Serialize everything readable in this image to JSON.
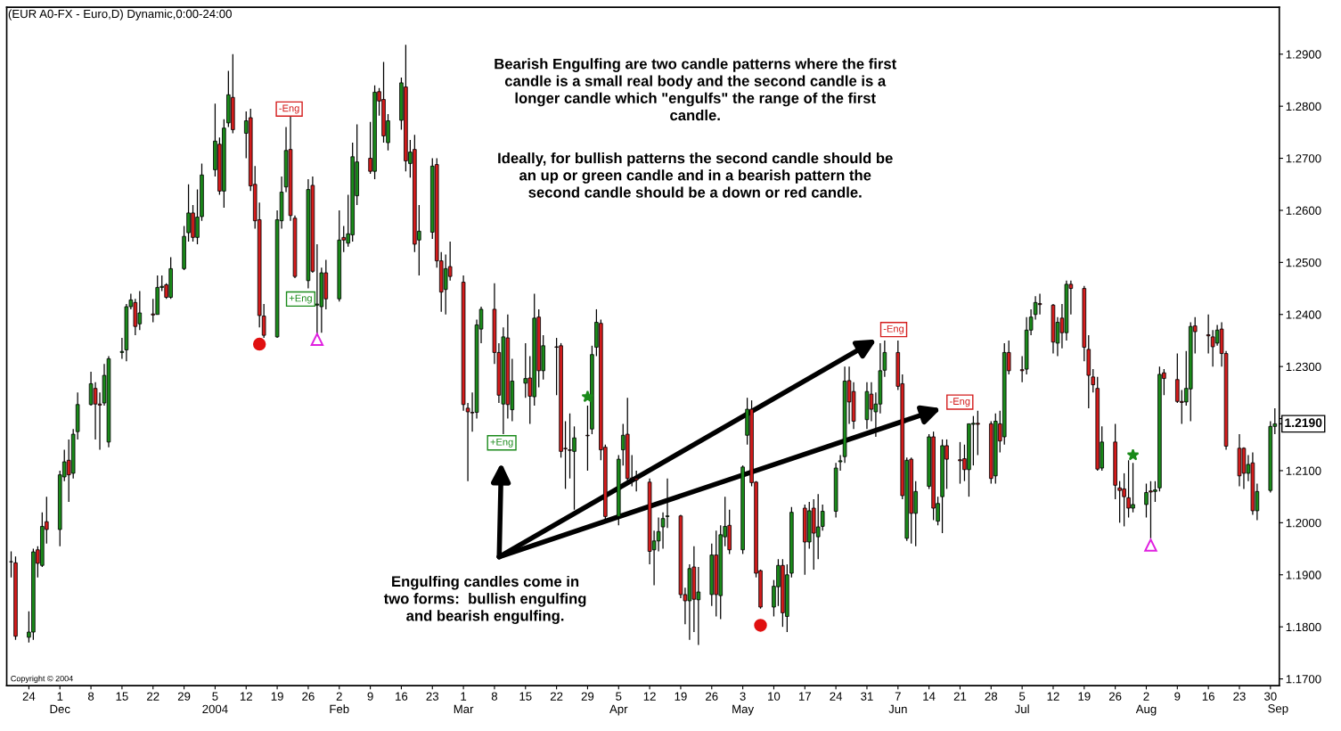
{
  "chart_data": {
    "type": "candlestick",
    "title": "(EUR A0-FX - Euro,D) Dynamic,0:00-24:00",
    "x": [
      "2003-11-20",
      "2003-11-21",
      "2003-11-24",
      "2003-11-25",
      "2003-11-26",
      "2003-11-27",
      "2003-11-28",
      "2003-12-01",
      "2003-12-02",
      "2003-12-03",
      "2003-12-04",
      "2003-12-05",
      "2003-12-08",
      "2003-12-09",
      "2003-12-10",
      "2003-12-11",
      "2003-12-12",
      "2003-12-15",
      "2003-12-16",
      "2003-12-17",
      "2003-12-18",
      "2003-12-19",
      "2003-12-22",
      "2003-12-23",
      "2003-12-24",
      "2003-12-25",
      "2003-12-26",
      "2003-12-29",
      "2003-12-30",
      "2003-12-31",
      "2004-01-01",
      "2004-01-02",
      "2004-01-05",
      "2004-01-06",
      "2004-01-07",
      "2004-01-08",
      "2004-01-09",
      "2004-01-12",
      "2004-01-13",
      "2004-01-14",
      "2004-01-15",
      "2004-01-16",
      "2004-01-19",
      "2004-01-20",
      "2004-01-21",
      "2004-01-22",
      "2004-01-23",
      "2004-01-26",
      "2004-01-27",
      "2004-01-28",
      "2004-01-29",
      "2004-01-30",
      "2004-02-02",
      "2004-02-03",
      "2004-02-04",
      "2004-02-05",
      "2004-02-06",
      "2004-02-09",
      "2004-02-10",
      "2004-02-11",
      "2004-02-12",
      "2004-02-13",
      "2004-02-16",
      "2004-02-17",
      "2004-02-18",
      "2004-02-19",
      "2004-02-20",
      "2004-02-23",
      "2004-02-24",
      "2004-02-25",
      "2004-02-26",
      "2004-02-27",
      "2004-03-01",
      "2004-03-02",
      "2004-03-03",
      "2004-03-04",
      "2004-03-05",
      "2004-03-08",
      "2004-03-09",
      "2004-03-10",
      "2004-03-11",
      "2004-03-12",
      "2004-03-15",
      "2004-03-16",
      "2004-03-17",
      "2004-03-18",
      "2004-03-19",
      "2004-03-22",
      "2004-03-23",
      "2004-03-24",
      "2004-03-25",
      "2004-03-26",
      "2004-03-29",
      "2004-03-30",
      "2004-03-31",
      "2004-04-01",
      "2004-04-02",
      "2004-04-05",
      "2004-04-06",
      "2004-04-07",
      "2004-04-08",
      "2004-04-09",
      "2004-04-12",
      "2004-04-13",
      "2004-04-14",
      "2004-04-15",
      "2004-04-16",
      "2004-04-19",
      "2004-04-20",
      "2004-04-21",
      "2004-04-22",
      "2004-04-23",
      "2004-04-26",
      "2004-04-27",
      "2004-04-28",
      "2004-04-29",
      "2004-04-30",
      "2004-05-03",
      "2004-05-04",
      "2004-05-05",
      "2004-05-06",
      "2004-05-07",
      "2004-05-10",
      "2004-05-11",
      "2004-05-12",
      "2004-05-13",
      "2004-05-14",
      "2004-05-17",
      "2004-05-18",
      "2004-05-19",
      "2004-05-20",
      "2004-05-21",
      "2004-05-24",
      "2004-05-25",
      "2004-05-26",
      "2004-05-27",
      "2004-05-28",
      "2004-05-31",
      "2004-06-01",
      "2004-06-02",
      "2004-06-03",
      "2004-06-04",
      "2004-06-07",
      "2004-06-08",
      "2004-06-09",
      "2004-06-10",
      "2004-06-11",
      "2004-06-14",
      "2004-06-15",
      "2004-06-16",
      "2004-06-17",
      "2004-06-18",
      "2004-06-21",
      "2004-06-22",
      "2004-06-23",
      "2004-06-24",
      "2004-06-25",
      "2004-06-28",
      "2004-06-29",
      "2004-06-30",
      "2004-07-01",
      "2004-07-02",
      "2004-07-05",
      "2004-07-06",
      "2004-07-07",
      "2004-07-08",
      "2004-07-09",
      "2004-07-12",
      "2004-07-13",
      "2004-07-14",
      "2004-07-15",
      "2004-07-16",
      "2004-07-19",
      "2004-07-20",
      "2004-07-21",
      "2004-07-22",
      "2004-07-23",
      "2004-07-26",
      "2004-07-27",
      "2004-07-28",
      "2004-07-29",
      "2004-07-30",
      "2004-08-02",
      "2004-08-03",
      "2004-08-04",
      "2004-08-05",
      "2004-08-06",
      "2004-08-09",
      "2004-08-10",
      "2004-08-11",
      "2004-08-12",
      "2004-08-13",
      "2004-08-16",
      "2004-08-17",
      "2004-08-18",
      "2004-08-19",
      "2004-08-20",
      "2004-08-23",
      "2004-08-24",
      "2004-08-25",
      "2004-08-26",
      "2004-08-27",
      "2004-08-30",
      "2004-08-31"
    ],
    "ohlc": [
      [
        1.1925,
        1.1945,
        1.1895,
        1.1925
      ],
      [
        1.1923,
        1.1935,
        1.1775,
        1.1782
      ],
      [
        1.178,
        1.183,
        1.177,
        1.179
      ],
      [
        1.179,
        1.195,
        1.1775,
        1.1944
      ],
      [
        1.1948,
        1.1955,
        1.1895,
        1.1922
      ],
      [
        1.1918,
        1.202,
        1.1915,
        1.1993
      ],
      [
        1.2002,
        1.205,
        1.196,
        1.1987
      ],
      [
        1.1987,
        1.21,
        1.1955,
        1.2092
      ],
      [
        1.2088,
        1.214,
        1.208,
        1.2117
      ],
      [
        1.212,
        1.216,
        1.204,
        1.2092
      ],
      [
        1.2095,
        1.218,
        1.2085,
        1.217
      ],
      [
        1.2175,
        1.225,
        1.216,
        1.2227
      ],
      [
        1.2227,
        1.229,
        1.2225,
        1.2267
      ],
      [
        1.2258,
        1.227,
        1.216,
        1.2228
      ],
      [
        1.2228,
        1.225,
        1.214,
        1.2226
      ],
      [
        1.223,
        1.2305,
        1.2225,
        1.2283
      ],
      [
        1.2155,
        1.232,
        1.2145,
        1.2315
      ],
      [
        1.2327,
        1.2355,
        1.2315,
        1.2329
      ],
      [
        1.2332,
        1.242,
        1.231,
        1.2415
      ],
      [
        1.2415,
        1.244,
        1.241,
        1.2428
      ],
      [
        1.2423,
        1.243,
        1.236,
        1.2377
      ],
      [
        1.2382,
        1.2445,
        1.237,
        1.2403
      ],
      [
        1.2401,
        1.243,
        1.2385,
        1.2399
      ],
      [
        1.24,
        1.2475,
        1.24,
        1.2452
      ],
      [
        1.2452,
        1.2475,
        1.2445,
        1.2454
      ],
      [
        1.2457,
        1.246,
        1.243,
        1.2433
      ],
      [
        1.2433,
        1.251,
        1.243,
        1.2488
      ],
      [
        1.2488,
        1.257,
        1.2485,
        1.255
      ],
      [
        1.2557,
        1.265,
        1.254,
        1.2595
      ],
      [
        1.2595,
        1.261,
        1.254,
        1.2548
      ],
      [
        1.2548,
        1.264,
        1.2535,
        1.2587
      ],
      [
        1.2588,
        1.269,
        1.258,
        1.2668
      ],
      [
        1.2678,
        1.2805,
        1.2665,
        1.2733
      ],
      [
        1.2727,
        1.274,
        1.263,
        1.2637
      ],
      [
        1.2637,
        1.2775,
        1.2605,
        1.2758
      ],
      [
        1.2768,
        1.2868,
        1.276,
        1.2822
      ],
      [
        1.2817,
        1.29,
        1.2748,
        1.2755
      ],
      [
        1.2748,
        1.279,
        1.27,
        1.2772
      ],
      [
        1.2778,
        1.2795,
        1.2637,
        1.2647
      ],
      [
        1.265,
        1.2685,
        1.2565,
        1.258
      ],
      [
        1.2582,
        1.2615,
        1.2375,
        1.2398
      ],
      [
        1.2397,
        1.242,
        1.2355,
        1.236
      ],
      [
        1.2357,
        1.26,
        1.2355,
        1.2582
      ],
      [
        1.258,
        1.2665,
        1.2565,
        1.2635
      ],
      [
        1.2645,
        1.276,
        1.2635,
        1.2715
      ],
      [
        1.2717,
        1.278,
        1.258,
        1.259
      ],
      [
        1.2585,
        1.259,
        1.247,
        1.2473
      ],
      [
        1.2465,
        1.266,
        1.245,
        1.264
      ],
      [
        1.2648,
        1.2665,
        1.248,
        1.2483
      ],
      [
        1.2418,
        1.2535,
        1.2362,
        1.242
      ],
      [
        1.2415,
        1.249,
        1.2365,
        1.248
      ],
      [
        1.248,
        1.2505,
        1.241,
        1.243
      ],
      [
        1.243,
        1.26,
        1.2425,
        1.2543
      ],
      [
        1.2548,
        1.257,
        1.252,
        1.2543
      ],
      [
        1.2537,
        1.263,
        1.253,
        1.2555
      ],
      [
        1.2553,
        1.273,
        1.254,
        1.2703
      ],
      [
        1.2628,
        1.2765,
        1.261,
        1.2693
      ],
      [
        1.27,
        1.277,
        1.267,
        1.2675
      ],
      [
        1.2675,
        1.284,
        1.266,
        1.2827
      ],
      [
        1.2828,
        1.2835,
        1.2782,
        1.281
      ],
      [
        1.2813,
        1.2885,
        1.273,
        1.2743
      ],
      [
        1.273,
        1.2785,
        1.2715,
        1.2772
      ],
      [
        1.2773,
        1.2855,
        1.2755,
        1.2845
      ],
      [
        1.2837,
        1.2918,
        1.2675,
        1.2695
      ],
      [
        1.269,
        1.2735,
        1.2663,
        1.2712
      ],
      [
        1.2717,
        1.2745,
        1.252,
        1.2535
      ],
      [
        1.2543,
        1.261,
        1.2475,
        1.256
      ],
      [
        1.2558,
        1.27,
        1.2545,
        1.2685
      ],
      [
        1.2688,
        1.27,
        1.249,
        1.2503
      ],
      [
        1.2503,
        1.252,
        1.2405,
        1.2443
      ],
      [
        1.2448,
        1.2515,
        1.24,
        1.2488
      ],
      [
        1.2492,
        1.254,
        1.2465,
        1.2473
      ],
      [
        1.2462,
        1.2475,
        1.2215,
        1.2227
      ],
      [
        1.222,
        1.223,
        1.208,
        1.2213
      ],
      [
        1.2212,
        1.225,
        1.2175,
        1.2211
      ],
      [
        1.2212,
        1.239,
        1.22,
        1.238
      ],
      [
        1.2372,
        1.2415,
        1.2345,
        1.241
      ],
      [
        1.241,
        1.246,
        1.2305,
        1.2327
      ],
      [
        1.2327,
        1.2345,
        1.223,
        1.2245
      ],
      [
        1.2228,
        1.2375,
        1.217,
        1.2357
      ],
      [
        1.2355,
        1.24,
        1.22,
        1.2227
      ],
      [
        1.2217,
        1.2315,
        1.2195,
        1.2272
      ],
      [
        1.2268,
        1.2345,
        1.224,
        1.2277
      ],
      [
        1.2278,
        1.232,
        1.219,
        1.2243
      ],
      [
        1.2242,
        1.244,
        1.2225,
        1.2393
      ],
      [
        1.2395,
        1.241,
        1.226,
        1.2292
      ],
      [
        1.2292,
        1.236,
        1.2275,
        1.234
      ],
      [
        1.2338,
        1.2355,
        1.2245,
        1.2337
      ],
      [
        1.234,
        1.2345,
        1.2125,
        1.2137
      ],
      [
        1.2143,
        1.2195,
        1.2065,
        1.2142
      ],
      [
        1.214,
        1.221,
        1.2085,
        1.2139
      ],
      [
        1.2137,
        1.2185,
        1.2025,
        1.2163
      ],
      [
        1.2168,
        1.2225,
        1.21,
        1.2167
      ],
      [
        1.218,
        1.234,
        1.217,
        1.2323
      ],
      [
        1.2337,
        1.241,
        1.232,
        1.2385
      ],
      [
        1.2383,
        1.239,
        1.212,
        1.214
      ],
      [
        1.2145,
        1.215,
        1.2005,
        1.2012
      ],
      [
        1.2012,
        1.213,
        1.1995,
        1.2122
      ],
      [
        1.214,
        1.219,
        1.211,
        1.2168
      ],
      [
        1.217,
        1.224,
        1.208,
        1.2085
      ],
      [
        1.2086,
        1.213,
        1.207,
        1.2085
      ],
      [
        1.2085,
        1.21,
        1.206,
        1.2082
      ],
      [
        1.2078,
        1.2085,
        1.192,
        1.1945
      ],
      [
        1.1948,
        1.1985,
        1.188,
        1.1965
      ],
      [
        1.1965,
        1.201,
        1.1945,
        1.1983
      ],
      [
        1.1992,
        1.202,
        1.195,
        1.2008
      ],
      [
        1.2012,
        1.2085,
        1.199,
        1.2013
      ],
      [
        1.2013,
        1.2015,
        1.1855,
        1.1862
      ],
      [
        1.1862,
        1.1875,
        1.1805,
        1.185
      ],
      [
        1.185,
        1.192,
        1.1775,
        1.1912
      ],
      [
        1.1915,
        1.1955,
        1.179,
        1.1853
      ],
      [
        1.1852,
        1.1915,
        1.1765,
        1.1867
      ],
      [
        1.1862,
        1.196,
        1.184,
        1.1938
      ],
      [
        1.1938,
        1.1985,
        1.182,
        1.1862
      ],
      [
        1.186,
        1.1995,
        1.1815,
        1.1977
      ],
      [
        1.1973,
        1.205,
        1.1955,
        1.1993
      ],
      [
        1.1995,
        1.2025,
        1.194,
        1.1948
      ],
      [
        1.1948,
        1.211,
        1.194,
        1.2107
      ],
      [
        1.2168,
        1.224,
        1.215,
        1.2218
      ],
      [
        1.2218,
        1.2235,
        1.207,
        1.2077
      ],
      [
        1.2078,
        1.208,
        1.1895,
        1.1903
      ],
      [
        1.1908,
        1.191,
        1.1835,
        1.1838
      ],
      [
        1.1838,
        1.189,
        1.182,
        1.1878
      ],
      [
        1.1877,
        1.193,
        1.184,
        1.1918
      ],
      [
        1.1918,
        1.193,
        1.18,
        1.1827
      ],
      [
        1.182,
        1.192,
        1.179,
        1.19
      ],
      [
        1.1903,
        1.203,
        1.1895,
        1.202
      ],
      [
        1.2028,
        1.2035,
        1.19,
        1.1963
      ],
      [
        1.1963,
        1.204,
        1.195,
        1.2023
      ],
      [
        1.2028,
        1.2045,
        1.191,
        1.198
      ],
      [
        1.1973,
        1.2055,
        1.193,
        1.1992
      ],
      [
        1.1993,
        1.2035,
        1.1985,
        1.2022
      ],
      [
        1.2022,
        1.2115,
        1.201,
        1.2105
      ],
      [
        1.2117,
        1.213,
        1.21,
        1.2119
      ],
      [
        1.2127,
        1.23,
        1.2115,
        1.2272
      ],
      [
        1.2273,
        1.23,
        1.219,
        1.2232
      ],
      [
        1.2252,
        1.227,
        1.218,
        1.2195
      ],
      [
        1.2198,
        1.227,
        1.218,
        1.2252
      ],
      [
        1.2247,
        1.227,
        1.2195,
        1.2218
      ],
      [
        1.2213,
        1.225,
        1.2165,
        1.2228
      ],
      [
        1.2228,
        1.2345,
        1.221,
        1.2292
      ],
      [
        1.2293,
        1.235,
        1.228,
        1.2327
      ],
      [
        1.2327,
        1.235,
        1.2255,
        1.2262
      ],
      [
        1.2267,
        1.2285,
        1.2045,
        1.2052
      ],
      [
        1.197,
        1.2125,
        1.1965,
        1.212
      ],
      [
        1.2122,
        1.2125,
        1.196,
        1.2018
      ],
      [
        1.2018,
        1.208,
        1.1955,
        1.206
      ],
      [
        1.207,
        1.217,
        1.2065,
        1.2165
      ],
      [
        1.2165,
        1.2175,
        1.2005,
        1.2028
      ],
      [
        1.2003,
        1.205,
        1.1995,
        1.2037
      ],
      [
        1.205,
        1.216,
        1.198,
        1.2148
      ],
      [
        1.2148,
        1.216,
        1.2065,
        1.2122
      ],
      [
        1.2121,
        1.2155,
        1.2075,
        1.2119
      ],
      [
        1.2123,
        1.215,
        1.208,
        1.2102
      ],
      [
        1.2102,
        1.219,
        1.205,
        1.219
      ],
      [
        1.2189,
        1.2205,
        1.211,
        1.2191
      ],
      [
        1.2191,
        1.2215,
        1.213,
        1.2189
      ],
      [
        1.219,
        1.2195,
        1.2075,
        1.2085
      ],
      [
        1.209,
        1.221,
        1.2075,
        1.2195
      ],
      [
        1.219,
        1.2215,
        1.2135,
        1.2157
      ],
      [
        1.2165,
        1.2345,
        1.215,
        1.2327
      ],
      [
        1.2327,
        1.235,
        1.2285,
        1.2292
      ],
      [
        1.2294,
        1.232,
        1.227,
        1.2292
      ],
      [
        1.2295,
        1.2395,
        1.2285,
        1.237
      ],
      [
        1.237,
        1.241,
        1.236,
        1.2395
      ],
      [
        1.24,
        1.2435,
        1.239,
        1.2423
      ],
      [
        1.2421,
        1.244,
        1.24,
        1.2419
      ],
      [
        1.2418,
        1.242,
        1.2325,
        1.2347
      ],
      [
        1.2345,
        1.2395,
        1.232,
        1.2385
      ],
      [
        1.2393,
        1.242,
        1.2335,
        1.2365
      ],
      [
        1.2365,
        1.2465,
        1.235,
        1.2458
      ],
      [
        1.2458,
        1.2465,
        1.24,
        1.245
      ],
      [
        1.245,
        1.2455,
        1.231,
        1.2337
      ],
      [
        1.2333,
        1.236,
        1.222,
        1.2283
      ],
      [
        1.228,
        1.2295,
        1.225,
        1.2265
      ],
      [
        1.2258,
        1.228,
        1.21,
        1.2103
      ],
      [
        1.2105,
        1.2185,
        1.21,
        1.2155
      ],
      [
        1.2155,
        1.219,
        1.2045,
        1.2072
      ],
      [
        1.2067,
        1.208,
        1.2,
        1.2062
      ],
      [
        1.2065,
        1.2095,
        1.1993,
        1.205
      ],
      [
        1.2048,
        1.212,
        1.201,
        1.2028
      ],
      [
        1.2028,
        1.2115,
        1.202,
        1.2035
      ],
      [
        1.2035,
        1.2075,
        1.201,
        1.2058
      ],
      [
        1.2061,
        1.208,
        1.197,
        1.2059
      ],
      [
        1.206,
        1.208,
        1.204,
        1.2063
      ],
      [
        1.2067,
        1.23,
        1.206,
        1.2285
      ],
      [
        1.2288,
        1.2295,
        1.2245,
        1.2277
      ],
      [
        1.2275,
        1.2325,
        1.223,
        1.2233
      ],
      [
        1.2233,
        1.2255,
        1.219,
        1.2231
      ],
      [
        1.2232,
        1.233,
        1.2225,
        1.2258
      ],
      [
        1.2257,
        1.2385,
        1.2195,
        1.2377
      ],
      [
        1.2378,
        1.2395,
        1.2325,
        1.2367
      ],
      [
        1.2361,
        1.24,
        1.2325,
        1.2359
      ],
      [
        1.2357,
        1.237,
        1.23,
        1.2338
      ],
      [
        1.2345,
        1.238,
        1.234,
        1.237
      ],
      [
        1.2372,
        1.2385,
        1.23,
        1.2325
      ],
      [
        1.2325,
        1.233,
        1.214,
        1.2147
      ],
      [
        1.2143,
        1.217,
        1.207,
        1.209
      ],
      [
        1.2143,
        1.2145,
        1.2065,
        1.2095
      ],
      [
        1.2095,
        1.213,
        1.208,
        1.2112
      ],
      [
        1.2115,
        1.2135,
        1.2015,
        1.2023
      ],
      [
        1.2023,
        1.2075,
        1.2005,
        1.206
      ],
      [
        1.2062,
        1.2195,
        1.2058,
        1.2185
      ],
      [
        1.2185,
        1.222,
        1.217,
        1.219
      ]
    ],
    "series": [
      {
        "type": "scatter",
        "marker": "circle",
        "color": "#e01010",
        "x": [
          "2004-01-15",
          "2004-05-07"
        ],
        "values": [
          1.2343,
          1.1803
        ]
      },
      {
        "type": "scatter",
        "marker": "triangle",
        "color": "#e020e0",
        "x": [
          "2004-01-28",
          "2004-08-03"
        ],
        "values": [
          1.2352,
          1.1957
        ]
      },
      {
        "type": "scatter",
        "marker": "star",
        "color": "#1a8a1a",
        "x": [
          "2004-03-29",
          "2004-07-30"
        ],
        "values": [
          1.2242,
          1.213
        ]
      }
    ],
    "xlim": [
      "2003-11-19",
      "2004-09-01"
    ],
    "xticks": [
      {
        "value": "2003-11-24",
        "label": "24"
      },
      {
        "value": "2003-12-01",
        "label": "1\nDec"
      },
      {
        "value": "2003-12-08",
        "label": "8"
      },
      {
        "value": "2003-12-15",
        "label": "15"
      },
      {
        "value": "2003-12-22",
        "label": "22"
      },
      {
        "value": "2003-12-29",
        "label": "29"
      },
      {
        "value": "2004-01-05",
        "label": "5\n2004"
      },
      {
        "value": "2004-01-12",
        "label": "12"
      },
      {
        "value": "2004-01-19",
        "label": "19"
      },
      {
        "value": "2004-01-26",
        "label": "26"
      },
      {
        "value": "2004-02-02",
        "label": "2\nFeb"
      },
      {
        "value": "2004-02-09",
        "label": "9"
      },
      {
        "value": "2004-02-16",
        "label": "16"
      },
      {
        "value": "2004-02-23",
        "label": "23"
      },
      {
        "value": "2004-03-01",
        "label": "1\nMar"
      },
      {
        "value": "2004-03-08",
        "label": "8"
      },
      {
        "value": "2004-03-15",
        "label": "15"
      },
      {
        "value": "2004-03-22",
        "label": "22"
      },
      {
        "value": "2004-03-29",
        "label": "29"
      },
      {
        "value": "2004-04-05",
        "label": "5\nApr"
      },
      {
        "value": "2004-04-12",
        "label": "12"
      },
      {
        "value": "2004-04-19",
        "label": "19"
      },
      {
        "value": "2004-04-26",
        "label": "26"
      },
      {
        "value": "2004-05-03",
        "label": "3\nMay"
      },
      {
        "value": "2004-05-10",
        "label": "10"
      },
      {
        "value": "2004-05-17",
        "label": "17"
      },
      {
        "value": "2004-05-24",
        "label": "24"
      },
      {
        "value": "2004-05-31",
        "label": "31"
      },
      {
        "value": "2004-06-07",
        "label": "7\nJun"
      },
      {
        "value": "2004-06-14",
        "label": "14"
      },
      {
        "value": "2004-06-21",
        "label": "21"
      },
      {
        "value": "2004-06-28",
        "label": "28"
      },
      {
        "value": "2004-07-05",
        "label": "5\nJul"
      },
      {
        "value": "2004-07-12",
        "label": "12"
      },
      {
        "value": "2004-07-19",
        "label": "19"
      },
      {
        "value": "2004-07-26",
        "label": "26"
      },
      {
        "value": "2004-08-02",
        "label": "2\nAug"
      },
      {
        "value": "2004-08-09",
        "label": "9"
      },
      {
        "value": "2004-08-16",
        "label": "16"
      },
      {
        "value": "2004-08-23",
        "label": "23"
      },
      {
        "value": "2004-08-30",
        "label": "30"
      }
    ],
    "ylim": [
      1.1687,
      1.299
    ],
    "yticks": [
      {
        "value": 1.17,
        "label": "1.1700"
      },
      {
        "value": 1.18,
        "label": "1.1800"
      },
      {
        "value": 1.19,
        "label": "1.1900"
      },
      {
        "value": 1.2,
        "label": "1.2000"
      },
      {
        "value": 1.21,
        "label": "1.2100"
      },
      {
        "value": 1.22,
        "label": null
      },
      {
        "value": 1.23,
        "label": "1.2300"
      },
      {
        "value": 1.24,
        "label": "1.2400"
      },
      {
        "value": 1.25,
        "label": "1.2500"
      },
      {
        "value": 1.26,
        "label": "1.2600"
      },
      {
        "value": 1.27,
        "label": "1.2700"
      },
      {
        "value": 1.28,
        "label": "1.2800"
      },
      {
        "value": 1.29,
        "label": "1.2900"
      }
    ],
    "ref_lines": [
      {
        "axis": "y",
        "value": 1.219,
        "label": "1.2190"
      }
    ],
    "annotations": [
      "-Eng",
      "+Eng",
      "+Eng",
      "-Eng",
      "-Eng",
      "Bearish Engulfing are two candle patterns where the first\ncandle is a small real body and the second candle is a\nlonger candle which \"engulfs\" the range of the first\ncandle.",
      "Ideally, for bullish patterns the second candle should be\nan up or green candle and in a bearish pattern the\nsecond candle should be a down or red candle.",
      "Engulfing candles come in\ntwo forms:  bullish engulfing\nand bearish engulfing.",
      "Copyright © 2004",
      "Sep"
    ],
    "grid": false,
    "legend": false
  }
}
